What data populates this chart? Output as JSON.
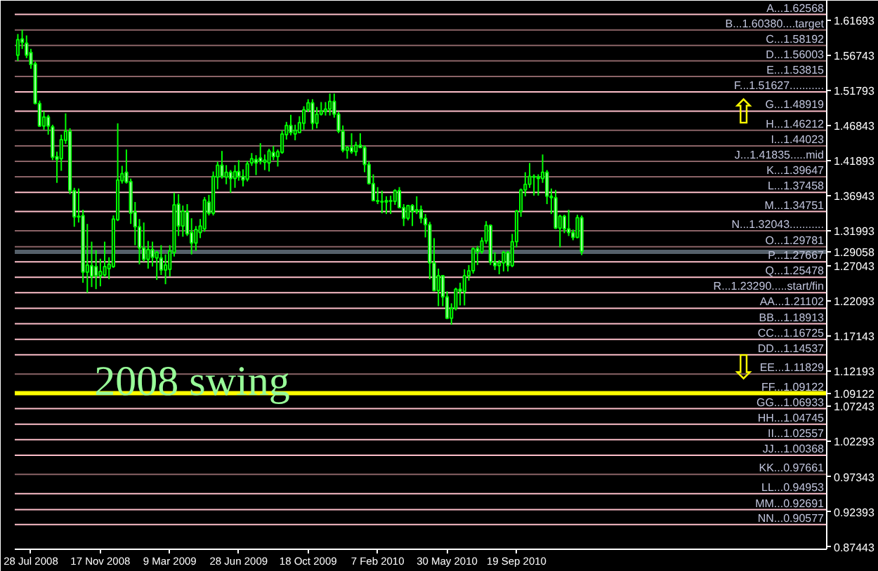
{
  "chart_data": {
    "type": "candlestick",
    "color": "#00ff00",
    "x": [
      "2008-07-07",
      "2008-07-14",
      "2008-07-21",
      "2008-07-28",
      "2008-08-04",
      "2008-08-11",
      "2008-08-18",
      "2008-08-25",
      "2008-09-01",
      "2008-09-08",
      "2008-09-15",
      "2008-09-22",
      "2008-09-29",
      "2008-10-06",
      "2008-10-13",
      "2008-10-20",
      "2008-10-27",
      "2008-11-03",
      "2008-11-10",
      "2008-11-17",
      "2008-11-24",
      "2008-12-01",
      "2008-12-08",
      "2008-12-15",
      "2008-12-22",
      "2008-12-29",
      "2009-01-05",
      "2009-01-12",
      "2009-01-19",
      "2009-01-26",
      "2009-02-02",
      "2009-02-09",
      "2009-02-16",
      "2009-02-23",
      "2009-03-02",
      "2009-03-09",
      "2009-03-16",
      "2009-03-23",
      "2009-03-30",
      "2009-04-06",
      "2009-04-13",
      "2009-04-20",
      "2009-04-27",
      "2009-05-04",
      "2009-05-11",
      "2009-05-18",
      "2009-05-25",
      "2009-06-01",
      "2009-06-08",
      "2009-06-15",
      "2009-06-22",
      "2009-06-28",
      "2009-07-05",
      "2009-07-12",
      "2009-07-19",
      "2009-07-26",
      "2009-08-02",
      "2009-08-09",
      "2009-08-16",
      "2009-08-23",
      "2009-08-30",
      "2009-09-06",
      "2009-09-13",
      "2009-09-20",
      "2009-09-27",
      "2009-10-04",
      "2009-10-11",
      "2009-10-18",
      "2009-10-25",
      "2009-11-01",
      "2009-11-08",
      "2009-11-15",
      "2009-11-22",
      "2009-11-29",
      "2009-12-06",
      "2009-12-13",
      "2009-12-20",
      "2009-12-27",
      "2010-01-03",
      "2010-01-10",
      "2010-01-17",
      "2010-01-24",
      "2010-01-31",
      "2010-02-07",
      "2010-02-14",
      "2010-02-21",
      "2010-02-28",
      "2010-03-07",
      "2010-03-14",
      "2010-03-21",
      "2010-03-28",
      "2010-04-04",
      "2010-04-11",
      "2010-04-18",
      "2010-04-25",
      "2010-05-02",
      "2010-05-09",
      "2010-05-16",
      "2010-05-23",
      "2010-05-30",
      "2010-06-06",
      "2010-06-13",
      "2010-06-20",
      "2010-06-27",
      "2010-07-04",
      "2010-07-11",
      "2010-07-18",
      "2010-07-25",
      "2010-08-01",
      "2010-08-08",
      "2010-08-15",
      "2010-08-22",
      "2010-08-29",
      "2010-09-05",
      "2010-09-12",
      "2010-09-19",
      "2010-09-26",
      "2010-10-03",
      "2010-10-10",
      "2010-10-17",
      "2010-10-24",
      "2010-10-31",
      "2010-11-07",
      "2010-11-14",
      "2010-11-21",
      "2010-11-28",
      "2010-12-05",
      "2010-12-12",
      "2010-12-19",
      "2010-12-26",
      "2011-01-02"
    ],
    "ohlc": [
      [
        1.568,
        1.598,
        1.56,
        1.59
      ],
      [
        1.591,
        1.604,
        1.577,
        1.586
      ],
      [
        1.585,
        1.596,
        1.564,
        1.568
      ],
      [
        1.572,
        1.577,
        1.549,
        1.555
      ],
      [
        1.556,
        1.559,
        1.499,
        1.5
      ],
      [
        1.5,
        1.504,
        1.467,
        1.468
      ],
      [
        1.468,
        1.489,
        1.463,
        1.481
      ],
      [
        1.481,
        1.484,
        1.456,
        1.468
      ],
      [
        1.467,
        1.47,
        1.42,
        1.424
      ],
      [
        1.425,
        1.432,
        1.388,
        1.421
      ],
      [
        1.422,
        1.456,
        1.405,
        1.449
      ],
      [
        1.448,
        1.486,
        1.443,
        1.461
      ],
      [
        1.461,
        1.465,
        1.372,
        1.377
      ],
      [
        1.377,
        1.381,
        1.326,
        1.34
      ],
      [
        1.34,
        1.38,
        1.332,
        1.341
      ],
      [
        1.342,
        1.35,
        1.247,
        1.262
      ],
      [
        1.262,
        1.33,
        1.233,
        1.272
      ],
      [
        1.271,
        1.305,
        1.241,
        1.256
      ],
      [
        1.27,
        1.293,
        1.238,
        1.257
      ],
      [
        1.257,
        1.281,
        1.242,
        1.263
      ],
      [
        1.258,
        1.305,
        1.255,
        1.27
      ],
      [
        1.267,
        1.283,
        1.252,
        1.273
      ],
      [
        1.27,
        1.342,
        1.268,
        1.337
      ],
      [
        1.336,
        1.472,
        1.334,
        1.392
      ],
      [
        1.391,
        1.412,
        1.387,
        1.401
      ],
      [
        1.403,
        1.435,
        1.387,
        1.389
      ],
      [
        1.39,
        1.394,
        1.33,
        1.345
      ],
      [
        1.347,
        1.361,
        1.3,
        1.326
      ],
      [
        1.326,
        1.337,
        1.273,
        1.296
      ],
      [
        1.296,
        1.332,
        1.277,
        1.28
      ],
      [
        1.28,
        1.306,
        1.267,
        1.294
      ],
      [
        1.294,
        1.305,
        1.27,
        1.283
      ],
      [
        1.282,
        1.292,
        1.251,
        1.29
      ],
      [
        1.282,
        1.3,
        1.258,
        1.265
      ],
      [
        1.265,
        1.287,
        1.245,
        1.272
      ],
      [
        1.266,
        1.3,
        1.256,
        1.292
      ],
      [
        1.29,
        1.374,
        1.284,
        1.357
      ],
      [
        1.358,
        1.372,
        1.313,
        1.327
      ],
      [
        1.327,
        1.356,
        1.312,
        1.348
      ],
      [
        1.347,
        1.358,
        1.313,
        1.316
      ],
      [
        1.318,
        1.338,
        1.287,
        1.303
      ],
      [
        1.303,
        1.327,
        1.292,
        1.322
      ],
      [
        1.318,
        1.337,
        1.31,
        1.327
      ],
      [
        1.323,
        1.368,
        1.319,
        1.364
      ],
      [
        1.361,
        1.371,
        1.342,
        1.345
      ],
      [
        1.345,
        1.404,
        1.342,
        1.397
      ],
      [
        1.396,
        1.418,
        1.379,
        1.413
      ],
      [
        1.413,
        1.433,
        1.394,
        1.397
      ],
      [
        1.396,
        1.413,
        1.386,
        1.403
      ],
      [
        1.403,
        1.406,
        1.374,
        1.394
      ],
      [
        1.394,
        1.413,
        1.381,
        1.404
      ],
      [
        1.404,
        1.42,
        1.391,
        1.397
      ],
      [
        1.397,
        1.407,
        1.383,
        1.392
      ],
      [
        1.393,
        1.419,
        1.39,
        1.415
      ],
      [
        1.416,
        1.43,
        1.412,
        1.422
      ],
      [
        1.421,
        1.427,
        1.399,
        1.416
      ],
      [
        1.423,
        1.444,
        1.414,
        1.418
      ],
      [
        1.417,
        1.428,
        1.406,
        1.42
      ],
      [
        1.416,
        1.436,
        1.404,
        1.433
      ],
      [
        1.431,
        1.44,
        1.42,
        1.425
      ],
      [
        1.425,
        1.435,
        1.411,
        1.432
      ],
      [
        1.431,
        1.462,
        1.429,
        1.457
      ],
      [
        1.456,
        1.474,
        1.449,
        1.469
      ],
      [
        1.469,
        1.484,
        1.455,
        1.459
      ],
      [
        1.457,
        1.47,
        1.448,
        1.462
      ],
      [
        1.459,
        1.482,
        1.458,
        1.473
      ],
      [
        1.472,
        1.496,
        1.463,
        1.491
      ],
      [
        1.491,
        1.506,
        1.488,
        1.501
      ],
      [
        1.501,
        1.506,
        1.463,
        1.472
      ],
      [
        1.472,
        1.495,
        1.465,
        1.485
      ],
      [
        1.485,
        1.502,
        1.483,
        1.489
      ],
      [
        1.489,
        1.502,
        1.483,
        1.492
      ],
      [
        1.492,
        1.514,
        1.483,
        1.503
      ],
      [
        1.503,
        1.514,
        1.48,
        1.485
      ],
      [
        1.485,
        1.488,
        1.458,
        1.461
      ],
      [
        1.461,
        1.469,
        1.431,
        1.434
      ],
      [
        1.434,
        1.44,
        1.422,
        1.438
      ],
      [
        1.438,
        1.458,
        1.429,
        1.432
      ],
      [
        1.432,
        1.446,
        1.426,
        1.441
      ],
      [
        1.441,
        1.458,
        1.437,
        1.438
      ],
      [
        1.438,
        1.441,
        1.403,
        1.414
      ],
      [
        1.414,
        1.418,
        1.386,
        1.387
      ],
      [
        1.387,
        1.4,
        1.362,
        1.363
      ],
      [
        1.363,
        1.382,
        1.358,
        1.362
      ],
      [
        1.362,
        1.377,
        1.345,
        1.361
      ],
      [
        1.361,
        1.369,
        1.344,
        1.363
      ],
      [
        1.363,
        1.37,
        1.344,
        1.362
      ],
      [
        1.362,
        1.379,
        1.357,
        1.377
      ],
      [
        1.377,
        1.382,
        1.352,
        1.353
      ],
      [
        1.353,
        1.358,
        1.327,
        1.338
      ],
      [
        1.338,
        1.357,
        1.335,
        1.356
      ],
      [
        1.356,
        1.358,
        1.327,
        1.348
      ],
      [
        1.348,
        1.369,
        1.344,
        1.35
      ],
      [
        1.35,
        1.356,
        1.331,
        1.338
      ],
      [
        1.338,
        1.344,
        1.311,
        1.329
      ],
      [
        1.329,
        1.333,
        1.252,
        1.275
      ],
      [
        1.275,
        1.31,
        1.235,
        1.236
      ],
      [
        1.236,
        1.267,
        1.214,
        1.257
      ],
      [
        1.257,
        1.258,
        1.214,
        1.227
      ],
      [
        1.227,
        1.235,
        1.196,
        1.197
      ],
      [
        1.197,
        1.218,
        1.188,
        1.211
      ],
      [
        1.211,
        1.24,
        1.208,
        1.238
      ],
      [
        1.238,
        1.247,
        1.215,
        1.235
      ],
      [
        1.235,
        1.266,
        1.215,
        1.257
      ],
      [
        1.257,
        1.272,
        1.25,
        1.264
      ],
      [
        1.264,
        1.297,
        1.26,
        1.295
      ],
      [
        1.295,
        1.299,
        1.272,
        1.291
      ],
      [
        1.291,
        1.311,
        1.288,
        1.306
      ],
      [
        1.306,
        1.334,
        1.302,
        1.328
      ],
      [
        1.328,
        1.329,
        1.272,
        1.276
      ],
      [
        1.276,
        1.29,
        1.265,
        1.271
      ],
      [
        1.271,
        1.279,
        1.259,
        1.275
      ],
      [
        1.275,
        1.292,
        1.263,
        1.29
      ],
      [
        1.29,
        1.292,
        1.263,
        1.271
      ],
      [
        1.271,
        1.316,
        1.269,
        1.305
      ],
      [
        1.305,
        1.35,
        1.297,
        1.348
      ],
      [
        1.348,
        1.38,
        1.34,
        1.378
      ],
      [
        1.378,
        1.403,
        1.369,
        1.386
      ],
      [
        1.386,
        1.416,
        1.381,
        1.397
      ],
      [
        1.397,
        1.4,
        1.37,
        1.396
      ],
      [
        1.396,
        1.4,
        1.37,
        1.394
      ],
      [
        1.394,
        1.428,
        1.388,
        1.403
      ],
      [
        1.403,
        1.406,
        1.358,
        1.369
      ],
      [
        1.369,
        1.38,
        1.344,
        1.367
      ],
      [
        1.367,
        1.378,
        1.323,
        1.324
      ],
      [
        1.324,
        1.343,
        1.297,
        1.341
      ],
      [
        1.341,
        1.343,
        1.317,
        1.323
      ],
      [
        1.323,
        1.35,
        1.313,
        1.318
      ],
      [
        1.318,
        1.322,
        1.307,
        1.311
      ],
      [
        1.311,
        1.343,
        1.31,
        1.339
      ],
      [
        1.339,
        1.342,
        1.286,
        1.291
      ]
    ],
    "xlim": [
      "2008-07-02",
      "2012-02-01"
    ],
    "ylim": [
      0.871,
      1.645
    ],
    "xticks": [
      {
        "value": "2008-07-28",
        "label": "28 Jul 2008"
      },
      {
        "value": "2008-11-17",
        "label": "17 Nov 2008"
      },
      {
        "value": "2009-03-09",
        "label": "9 Mar 2009"
      },
      {
        "value": "2009-06-28",
        "label": "28 Jun 2009"
      },
      {
        "value": "2009-10-18",
        "label": "18 Oct 2009"
      },
      {
        "value": "2010-02-07",
        "label": "7 Feb 2010"
      },
      {
        "value": "2010-05-30",
        "label": "30 May 2010"
      },
      {
        "value": "2010-09-19",
        "label": "19 Sep 2010"
      }
    ],
    "yticks": [
      1.61693,
      1.56743,
      1.51793,
      1.46843,
      1.41893,
      1.36943,
      1.31993,
      1.29058,
      1.27043,
      1.22093,
      1.17143,
      1.12193,
      1.09122,
      1.07243,
      1.02293,
      0.97343,
      0.92393,
      0.87443
    ],
    "ref_lines": [
      {
        "axis": "y",
        "value": 1.62568,
        "label": "A...1.62568",
        "color": "#ffc0cb"
      },
      {
        "axis": "y",
        "value": 1.6038,
        "label": "B...1.60380....target",
        "color": "#8b6467"
      },
      {
        "axis": "y",
        "value": 1.58192,
        "label": "C...1.58192",
        "color": "#8b6467"
      },
      {
        "axis": "y",
        "value": 1.56003,
        "label": "D...1.56003",
        "color": "#8b6467"
      },
      {
        "axis": "y",
        "value": 1.53815,
        "label": "E...1.53815",
        "color": "#8b6467"
      },
      {
        "axis": "y",
        "value": 1.51627,
        "label": "F...1.51627...........",
        "color": "#ffc0cb"
      },
      {
        "axis": "y",
        "value": 1.48919,
        "label": "G...1.48919",
        "color": "#ffc0cb"
      },
      {
        "axis": "y",
        "value": 1.46212,
        "label": "H...1.46212",
        "color": "#8b6467"
      },
      {
        "axis": "y",
        "value": 1.44023,
        "label": "I...1.44023",
        "color": "#8b6467"
      },
      {
        "axis": "y",
        "value": 1.41835,
        "label": "J...1.41835.....mid",
        "color": "#8b6467"
      },
      {
        "axis": "y",
        "value": 1.39647,
        "label": "K...1.39647",
        "color": "#8b6467"
      },
      {
        "axis": "y",
        "value": 1.37458,
        "label": "L...1.37458",
        "color": "#ffc0cb"
      },
      {
        "axis": "y",
        "value": 1.34751,
        "label": "M...1.34751",
        "color": "#ffc0cb"
      },
      {
        "axis": "y",
        "value": 1.32043,
        "label": "N...1.32043...........",
        "color": "#8b6467"
      },
      {
        "axis": "y",
        "value": 1.29781,
        "label": "O...1.29781",
        "color": "#8b6467"
      },
      {
        "axis": "y",
        "value": 1.29058,
        "color": "#55606a"
      },
      {
        "axis": "y",
        "value": 1.27667,
        "label": "P...1.27667",
        "color": "#ffc0cb"
      },
      {
        "axis": "y",
        "value": 1.25478,
        "label": "Q...1.25478",
        "color": "#ffc0cb"
      },
      {
        "axis": "y",
        "value": 1.2329,
        "label": "R...1.23290.....start/fin",
        "color": "#ffc0cb"
      },
      {
        "axis": "y",
        "value": 1.21102,
        "label": "AA...1.21102",
        "color": "#ffc0cb"
      },
      {
        "axis": "y",
        "value": 1.18913,
        "label": "BB...1.18913",
        "color": "#ffc0cb"
      },
      {
        "axis": "y",
        "value": 1.16725,
        "label": "CC...1.16725",
        "color": "#ffc0cb"
      },
      {
        "axis": "y",
        "value": 1.14537,
        "label": "DD...1.14537",
        "color": "#ffc0cb"
      },
      {
        "axis": "y",
        "value": 1.11829,
        "label": "EE...1.11829",
        "color": "#8b6467"
      },
      {
        "axis": "y",
        "value": 1.09122,
        "label": "FF...1.09122",
        "color": "#ffff00"
      },
      {
        "axis": "y",
        "value": 1.06933,
        "label": "GG...1.06933",
        "color": "#ffc0cb"
      },
      {
        "axis": "y",
        "value": 1.04745,
        "label": "HH...1.04745",
        "color": "#ffc0cb"
      },
      {
        "axis": "y",
        "value": 1.02557,
        "label": "II...1.02557",
        "color": "#ffc0cb"
      },
      {
        "axis": "y",
        "value": 1.00368,
        "label": "JJ...1.00368",
        "color": "#ffc0cb"
      },
      {
        "axis": "y",
        "value": 0.97661,
        "label": "KK...0.97661",
        "color": "#8b6467"
      },
      {
        "axis": "y",
        "value": 0.94953,
        "label": "LL...0.94953",
        "color": "#ffc0cb"
      },
      {
        "axis": "y",
        "value": 0.92691,
        "label": "MM...0.92691",
        "color": "#ffc0cb"
      },
      {
        "axis": "y",
        "value": 0.90577,
        "label": "NN...0.90577",
        "color": "#ffc0cb"
      }
    ],
    "annotations": [
      "2008 swing",
      {
        "text": "⇧",
        "x": "2011-09-20",
        "y": 1.488
      },
      {
        "text": "⇩",
        "x": "2011-09-20",
        "y": 1.127
      }
    ]
  }
}
